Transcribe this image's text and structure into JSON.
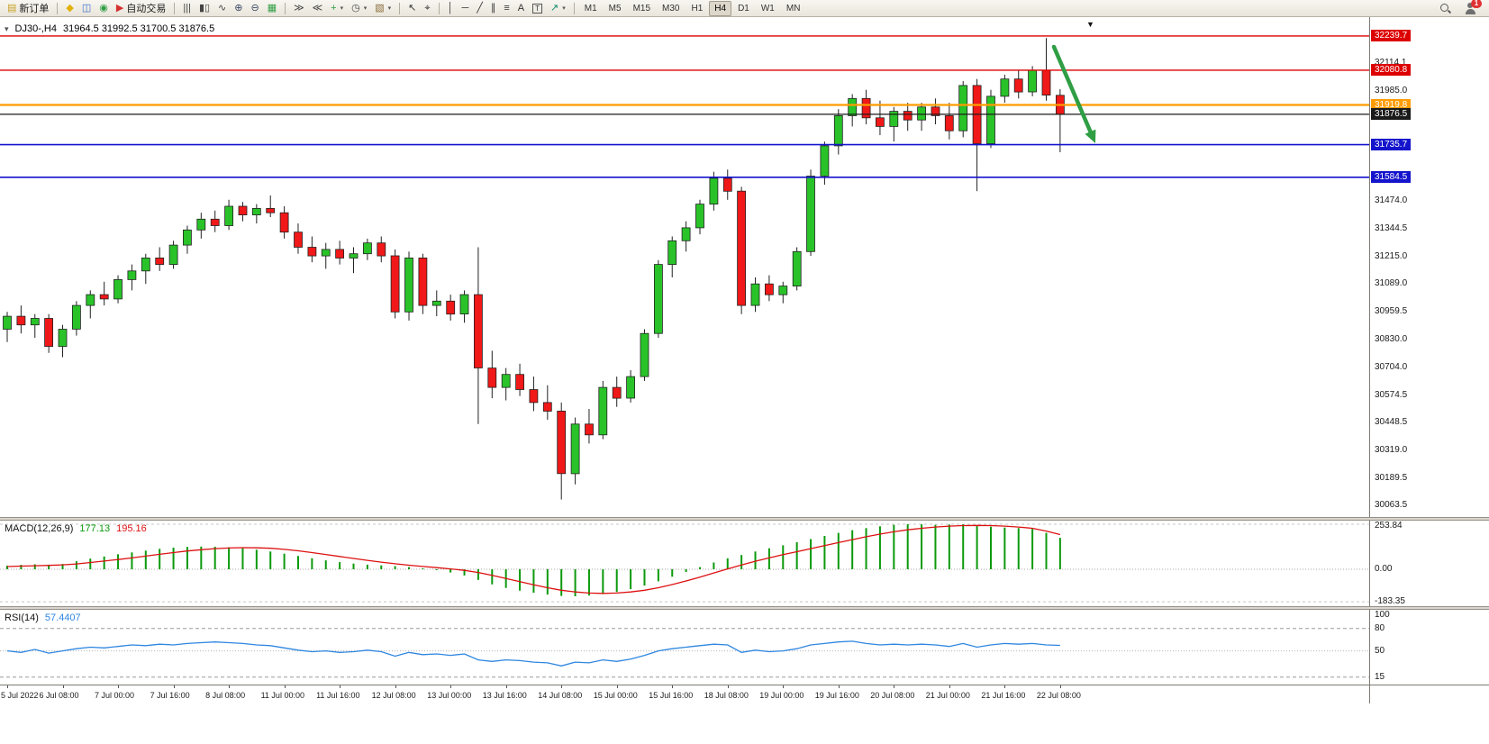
{
  "toolbar": {
    "items": [
      {
        "t": "btn",
        "name": "new-order",
        "glyph": "▤",
        "color": "#c9a227",
        "label": "新订单"
      },
      {
        "t": "sep"
      },
      {
        "t": "btn",
        "name": "market-watch",
        "glyph": "◆",
        "color": "#e2b007"
      },
      {
        "t": "btn",
        "name": "navigator",
        "glyph": "◫",
        "color": "#3a6fc9"
      },
      {
        "t": "btn",
        "name": "terminal",
        "glyph": "◉",
        "color": "#2f9e44"
      },
      {
        "t": "btn",
        "name": "auto-trading",
        "glyph": "▶",
        "color": "#d43030",
        "label": "自动交易"
      },
      {
        "t": "sep"
      },
      {
        "t": "btn",
        "name": "chart-bars",
        "glyph": "|||",
        "color": "#444444"
      },
      {
        "t": "btn",
        "name": "chart-candles",
        "glyph": "▮▯",
        "color": "#444444"
      },
      {
        "t": "btn",
        "name": "chart-line",
        "glyph": "∿",
        "color": "#444444"
      },
      {
        "t": "btn",
        "name": "zoom-in",
        "glyph": "⊕",
        "color": "#3c4a66"
      },
      {
        "t": "btn",
        "name": "zoom-out",
        "glyph": "⊖",
        "color": "#3c4a66"
      },
      {
        "t": "btn",
        "name": "tile-windows",
        "glyph": "▦",
        "color": "#2f9e44"
      },
      {
        "t": "sep"
      },
      {
        "t": "btn",
        "name": "auto-scroll",
        "glyph": "≫",
        "color": "#444444"
      },
      {
        "t": "btn",
        "name": "chart-shift",
        "glyph": "≪",
        "color": "#444444"
      },
      {
        "t": "btn",
        "name": "indicators",
        "glyph": "+",
        "color": "#2f9e44",
        "caret": true
      },
      {
        "t": "btn",
        "name": "periods",
        "glyph": "◷",
        "color": "#444444",
        "caret": true
      },
      {
        "t": "btn",
        "name": "templates",
        "glyph": "▧",
        "color": "#8a6d3b",
        "caret": true
      },
      {
        "t": "sep"
      },
      {
        "t": "btn",
        "name": "cursor",
        "glyph": "↖",
        "color": "#333333"
      },
      {
        "t": "btn",
        "name": "crosshair",
        "glyph": "⌖",
        "color": "#333333"
      },
      {
        "t": "sep"
      },
      {
        "t": "btn",
        "name": "draw-vline",
        "glyph": "│",
        "color": "#333333"
      },
      {
        "t": "btn",
        "name": "draw-hline",
        "glyph": "─",
        "color": "#333333"
      },
      {
        "t": "btn",
        "name": "draw-trendline",
        "glyph": "╱",
        "color": "#333333"
      },
      {
        "t": "btn",
        "name": "draw-channel",
        "glyph": "∥",
        "color": "#333333"
      },
      {
        "t": "btn",
        "name": "draw-fibonacci",
        "glyph": "≡",
        "color": "#333333"
      },
      {
        "t": "btn",
        "name": "draw-text",
        "glyph": "A",
        "color": "#333333"
      },
      {
        "t": "btn",
        "name": "draw-label",
        "glyph": "T",
        "color": "#333333",
        "boxed": true
      },
      {
        "t": "btn",
        "name": "draw-arrows",
        "glyph": "↗",
        "color": "#0a8a6a",
        "caret": true
      },
      {
        "t": "sep"
      }
    ],
    "timeframes": [
      "M1",
      "M5",
      "M15",
      "M30",
      "H1",
      "H4",
      "D1",
      "W1",
      "MN"
    ],
    "active_timeframe": "H4",
    "notification_count": "1"
  },
  "chart": {
    "symbol_period": "DJ30-,H4",
    "ohlc_values": "31964.5 31992.5 31700.5 31876.5",
    "open": "31964.5",
    "high": "31992.5",
    "low": "31700.5",
    "close": "31876.5"
  },
  "indicators": {
    "macd": {
      "name": "MACD(12,26,9)",
      "main_value": "177.13",
      "signal_value": "195.16"
    },
    "rsi": {
      "name": "RSI(14)",
      "value": "57.4407"
    }
  },
  "chart_data": [
    {
      "type": "candlestick",
      "symbol": "DJ30-",
      "timeframe": "H4",
      "title": "DJ30-,H4 31964.5 31992.5 31700.5 31876.5",
      "ylim": [
        30009,
        32327
      ],
      "colors": {
        "up": "#29c329",
        "down": "#f01818",
        "outline": "#222222"
      },
      "price_ticks": [
        "32114.1",
        "31985.0",
        "31474.0",
        "31344.5",
        "31215.0",
        "31089.0",
        "30959.5",
        "30830.0",
        "30704.0",
        "30574.5",
        "30448.5",
        "30319.0",
        "30189.5",
        "30063.5"
      ],
      "hlines": [
        {
          "price": 32239.7,
          "label": "32239.7",
          "color": "#dd0000",
          "width": 1.4
        },
        {
          "price": 32080.8,
          "label": "32080.8",
          "color": "#dd0000",
          "width": 1.4
        },
        {
          "price": 31919.8,
          "label": "31919.8",
          "color": "#ff9c00",
          "width": 2.2
        },
        {
          "price": 31876.5,
          "label": "31876.5",
          "color": "#1a1a1a",
          "width": 1.2
        },
        {
          "price": 31735.7,
          "label": "31735.7",
          "color": "#1414cc",
          "width": 1.6
        },
        {
          "price": 31584.5,
          "label": "31584.5",
          "color": "#1414cc",
          "width": 1.6
        }
      ],
      "x_labels": [
        "5 Jul 2022",
        "6 Jul 08:00",
        "7 Jul 00:00",
        "7 Jul 16:00",
        "8 Jul 08:00",
        "11 Jul 00:00",
        "11 Jul 16:00",
        "12 Jul 08:00",
        "13 Jul 00:00",
        "13 Jul 16:00",
        "14 Jul 08:00",
        "15 Jul 00:00",
        "15 Jul 16:00",
        "18 Jul 08:00",
        "19 Jul 00:00",
        "19 Jul 16:00",
        "20 Jul 08:00",
        "21 Jul 00:00",
        "21 Jul 16:00",
        "22 Jul 08:00"
      ],
      "bars_per_label": 4,
      "ohlc": [
        [
          30880,
          30960,
          30820,
          30940
        ],
        [
          30940,
          30990,
          30860,
          30900
        ],
        [
          30900,
          30950,
          30840,
          30930
        ],
        [
          30930,
          30950,
          30770,
          30800
        ],
        [
          30800,
          30900,
          30750,
          30880
        ],
        [
          30880,
          31010,
          30850,
          30990
        ],
        [
          30990,
          31060,
          30930,
          31040
        ],
        [
          31040,
          31100,
          30990,
          31020
        ],
        [
          31020,
          31130,
          31000,
          31110
        ],
        [
          31110,
          31180,
          31060,
          31150
        ],
        [
          31150,
          31230,
          31090,
          31210
        ],
        [
          31210,
          31260,
          31150,
          31180
        ],
        [
          31180,
          31290,
          31160,
          31270
        ],
        [
          31270,
          31360,
          31230,
          31340
        ],
        [
          31340,
          31420,
          31300,
          31390
        ],
        [
          31390,
          31430,
          31330,
          31360
        ],
        [
          31360,
          31480,
          31340,
          31450
        ],
        [
          31450,
          31470,
          31380,
          31410
        ],
        [
          31410,
          31460,
          31370,
          31440
        ],
        [
          31440,
          31500,
          31400,
          31420
        ],
        [
          31420,
          31450,
          31300,
          31330
        ],
        [
          31330,
          31370,
          31230,
          31260
        ],
        [
          31260,
          31310,
          31190,
          31220
        ],
        [
          31220,
          31280,
          31160,
          31250
        ],
        [
          31250,
          31290,
          31180,
          31210
        ],
        [
          31210,
          31260,
          31140,
          31230
        ],
        [
          31230,
          31300,
          31200,
          31280
        ],
        [
          31280,
          31310,
          31190,
          31220
        ],
        [
          31220,
          31250,
          30930,
          30960
        ],
        [
          30960,
          31240,
          30920,
          31210
        ],
        [
          31210,
          31230,
          30950,
          30990
        ],
        [
          30990,
          31060,
          30940,
          31010
        ],
        [
          31010,
          31040,
          30920,
          30950
        ],
        [
          30950,
          31060,
          30910,
          31040
        ],
        [
          31040,
          31260,
          30440,
          30700
        ],
        [
          30700,
          30780,
          30560,
          30610
        ],
        [
          30610,
          30700,
          30550,
          30670
        ],
        [
          30670,
          30720,
          30570,
          30600
        ],
        [
          30600,
          30660,
          30500,
          30540
        ],
        [
          30540,
          30620,
          30460,
          30500
        ],
        [
          30500,
          30540,
          30090,
          30210
        ],
        [
          30210,
          30470,
          30160,
          30440
        ],
        [
          30440,
          30510,
          30350,
          30390
        ],
        [
          30390,
          30640,
          30370,
          30610
        ],
        [
          30610,
          30660,
          30520,
          30560
        ],
        [
          30560,
          30690,
          30540,
          30660
        ],
        [
          30660,
          30880,
          30640,
          30860
        ],
        [
          30860,
          31200,
          30840,
          31180
        ],
        [
          31180,
          31310,
          31120,
          31290
        ],
        [
          31290,
          31380,
          31240,
          31350
        ],
        [
          31350,
          31480,
          31320,
          31460
        ],
        [
          31460,
          31610,
          31430,
          31580
        ],
        [
          31580,
          31620,
          31480,
          31520
        ],
        [
          31520,
          31540,
          30950,
          30990
        ],
        [
          30990,
          31120,
          30960,
          31090
        ],
        [
          31090,
          31130,
          31010,
          31040
        ],
        [
          31040,
          31100,
          31000,
          31080
        ],
        [
          31080,
          31260,
          31060,
          31240
        ],
        [
          31240,
          31620,
          31220,
          31590
        ],
        [
          31590,
          31750,
          31550,
          31730
        ],
        [
          31730,
          31900,
          31690,
          31870
        ],
        [
          31870,
          31970,
          31820,
          31950
        ],
        [
          31950,
          31990,
          31830,
          31860
        ],
        [
          31860,
          31940,
          31780,
          31820
        ],
        [
          31820,
          31910,
          31750,
          31890
        ],
        [
          31890,
          31930,
          31800,
          31850
        ],
        [
          31850,
          31930,
          31800,
          31910
        ],
        [
          31910,
          31950,
          31830,
          31870
        ],
        [
          31870,
          31930,
          31760,
          31800
        ],
        [
          31800,
          32030,
          31770,
          32010
        ],
        [
          32010,
          32040,
          31520,
          31740
        ],
        [
          31740,
          31990,
          31720,
          31960
        ],
        [
          31960,
          32060,
          31930,
          32040
        ],
        [
          32040,
          32080,
          31950,
          31980
        ],
        [
          31980,
          32100,
          31960,
          32080
        ],
        [
          32080,
          32230,
          31940,
          31965
        ],
        [
          31964.5,
          31992.5,
          31700.5,
          31876.5
        ]
      ],
      "annotation": {
        "type": "arrow",
        "color": "#2f9e44",
        "from": [
          1170,
          33
        ],
        "to": [
          1216,
          140
        ]
      }
    },
    {
      "type": "macd-histogram",
      "name": "MACD(12,26,9)",
      "params": [
        12,
        26,
        9
      ],
      "last_main": 177.13,
      "last_signal": 195.16,
      "ylim": [
        -208,
        274
      ],
      "colors": {
        "histogram": "#0c9a0c",
        "signal": "#dd1111"
      },
      "scale_ticks": [
        {
          "label": "253.84",
          "value": 253.84
        },
        {
          "label": "0.00",
          "value": 0
        },
        {
          "label": "-183.35",
          "value": -183.35
        }
      ],
      "histogram": [
        20,
        25,
        28,
        26,
        30,
        45,
        60,
        72,
        85,
        95,
        105,
        115,
        122,
        126,
        128,
        127,
        124,
        118,
        110,
        100,
        88,
        75,
        62,
        50,
        40,
        32,
        26,
        22,
        18,
        12,
        5,
        -5,
        -18,
        -35,
        -60,
        -85,
        -105,
        -120,
        -132,
        -142,
        -150,
        -152,
        -148,
        -140,
        -128,
        -112,
        -92,
        -68,
        -42,
        -15,
        12,
        38,
        62,
        80,
        100,
        118,
        135,
        152,
        170,
        188,
        205,
        220,
        232,
        242,
        250,
        253.84,
        253,
        250,
        252,
        253,
        248,
        240,
        235,
        232,
        228,
        205,
        177.13
      ],
      "signal": [
        15,
        18,
        20,
        22,
        25,
        30,
        38,
        46,
        55,
        64,
        74,
        84,
        94,
        103,
        110,
        116,
        120,
        122,
        121,
        118,
        112,
        104,
        94,
        83,
        72,
        61,
        50,
        40,
        31,
        23,
        16,
        9,
        2,
        -6,
        -18,
        -34,
        -52,
        -70,
        -88,
        -104,
        -118,
        -128,
        -134,
        -136,
        -134,
        -128,
        -118,
        -104,
        -86,
        -66,
        -44,
        -21,
        2,
        24,
        45,
        64,
        82,
        99,
        116,
        133,
        150,
        167,
        183,
        198,
        211,
        222,
        231,
        238,
        243,
        246,
        247,
        246,
        243,
        238,
        231,
        215,
        195.16
      ]
    },
    {
      "type": "line",
      "name": "RSI(14)",
      "period": 14,
      "last_value": 57.4407,
      "ylim": [
        5,
        105
      ],
      "colors": {
        "line": "#2e86e0"
      },
      "scale_ticks": [
        {
          "label": "100",
          "value": 100
        },
        {
          "label": "80",
          "value": 80
        },
        {
          "label": "50",
          "value": 50
        },
        {
          "label": "15",
          "value": 15
        }
      ],
      "levels": [
        {
          "value": 80,
          "style": "dash"
        },
        {
          "value": 50,
          "style": "dot"
        },
        {
          "value": 15,
          "style": "dash"
        }
      ],
      "values": [
        50,
        48,
        52,
        47,
        50,
        53,
        55,
        54,
        56,
        58,
        57,
        59,
        58,
        60,
        61,
        62,
        61,
        60,
        58,
        57,
        54,
        51,
        49,
        50,
        48,
        49,
        51,
        49,
        43,
        48,
        45,
        46,
        44,
        46,
        38,
        36,
        38,
        37,
        35,
        34,
        30,
        35,
        34,
        38,
        36,
        39,
        44,
        50,
        53,
        55,
        57,
        59,
        58,
        48,
        51,
        49,
        50,
        53,
        58,
        60,
        62,
        63,
        60,
        58,
        59,
        58,
        59,
        58,
        56,
        60,
        55,
        58,
        60,
        59,
        60,
        58,
        57.4407
      ]
    }
  ]
}
